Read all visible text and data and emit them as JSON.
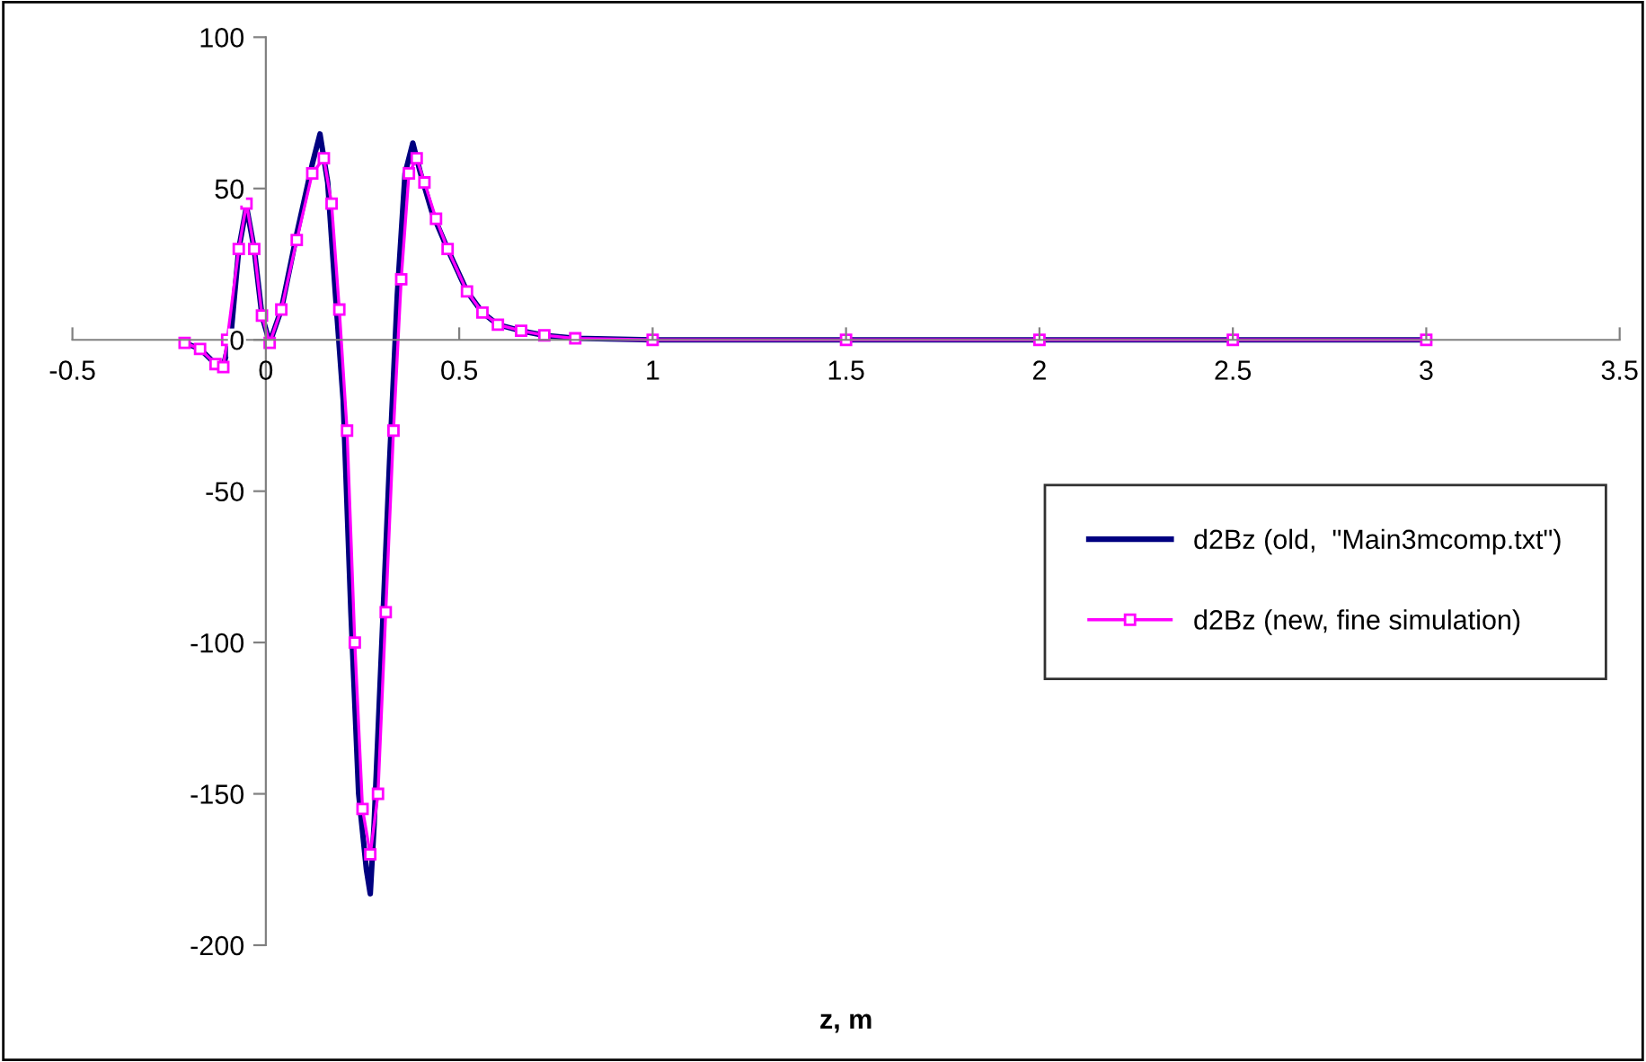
{
  "chart_data": {
    "type": "line",
    "xlabel": "z, m",
    "xlim": [
      -0.5,
      3.5
    ],
    "xticks": [
      -0.5,
      0,
      0.5,
      1,
      1.5,
      2,
      2.5,
      3,
      3.5
    ],
    "ylim": [
      -200,
      100
    ],
    "yticks": [
      -200,
      -150,
      -100,
      -50,
      0,
      50,
      100
    ],
    "grid": false,
    "legend": "right",
    "series": [
      {
        "name": "d2Bz (old,  \"Main3mcomp.txt\")",
        "color": "#000080",
        "marker": "none",
        "x": [
          -0.21,
          -0.17,
          -0.13,
          -0.11,
          -0.09,
          -0.07,
          -0.05,
          -0.03,
          -0.01,
          0.01,
          0.04,
          0.08,
          0.12,
          0.14,
          0.16,
          0.18,
          0.2,
          0.22,
          0.24,
          0.26,
          0.27,
          0.28,
          0.3,
          0.32,
          0.34,
          0.36,
          0.38,
          0.4,
          0.43,
          0.47,
          0.52,
          0.56,
          0.6,
          0.66,
          0.72,
          0.8,
          1.0,
          1.5,
          2.0,
          2.5,
          3.0
        ],
        "values": [
          -1,
          -3,
          -8,
          -9,
          2,
          30,
          44,
          30,
          8,
          -1,
          10,
          35,
          58,
          68,
          52,
          15,
          -20,
          -90,
          -150,
          -175,
          -183,
          -160,
          -100,
          -40,
          15,
          55,
          65,
          55,
          42,
          30,
          16,
          9,
          5,
          3,
          1.5,
          0.5,
          0,
          0,
          0,
          0,
          0
        ]
      },
      {
        "name": "d2Bz (new, fine simulation)",
        "color": "#ff00ff",
        "marker": "square",
        "x": [
          -0.21,
          -0.17,
          -0.13,
          -0.11,
          -0.1,
          -0.07,
          -0.05,
          -0.03,
          -0.01,
          0.01,
          0.04,
          0.08,
          0.12,
          0.15,
          0.17,
          0.19,
          0.21,
          0.23,
          0.25,
          0.27,
          0.29,
          0.31,
          0.33,
          0.35,
          0.37,
          0.39,
          0.41,
          0.44,
          0.47,
          0.52,
          0.56,
          0.6,
          0.66,
          0.72,
          0.8,
          1.0,
          1.5,
          2.0,
          2.5,
          3.0
        ],
        "values": [
          -1,
          -3,
          -8,
          -9,
          0,
          30,
          45,
          30,
          8,
          -1,
          10,
          33,
          55,
          60,
          45,
          10,
          -30,
          -100,
          -155,
          -170,
          -150,
          -90,
          -30,
          20,
          55,
          60,
          52,
          40,
          30,
          16,
          9,
          5,
          3,
          1.5,
          0.5,
          0,
          0,
          0,
          0,
          0
        ]
      }
    ]
  }
}
